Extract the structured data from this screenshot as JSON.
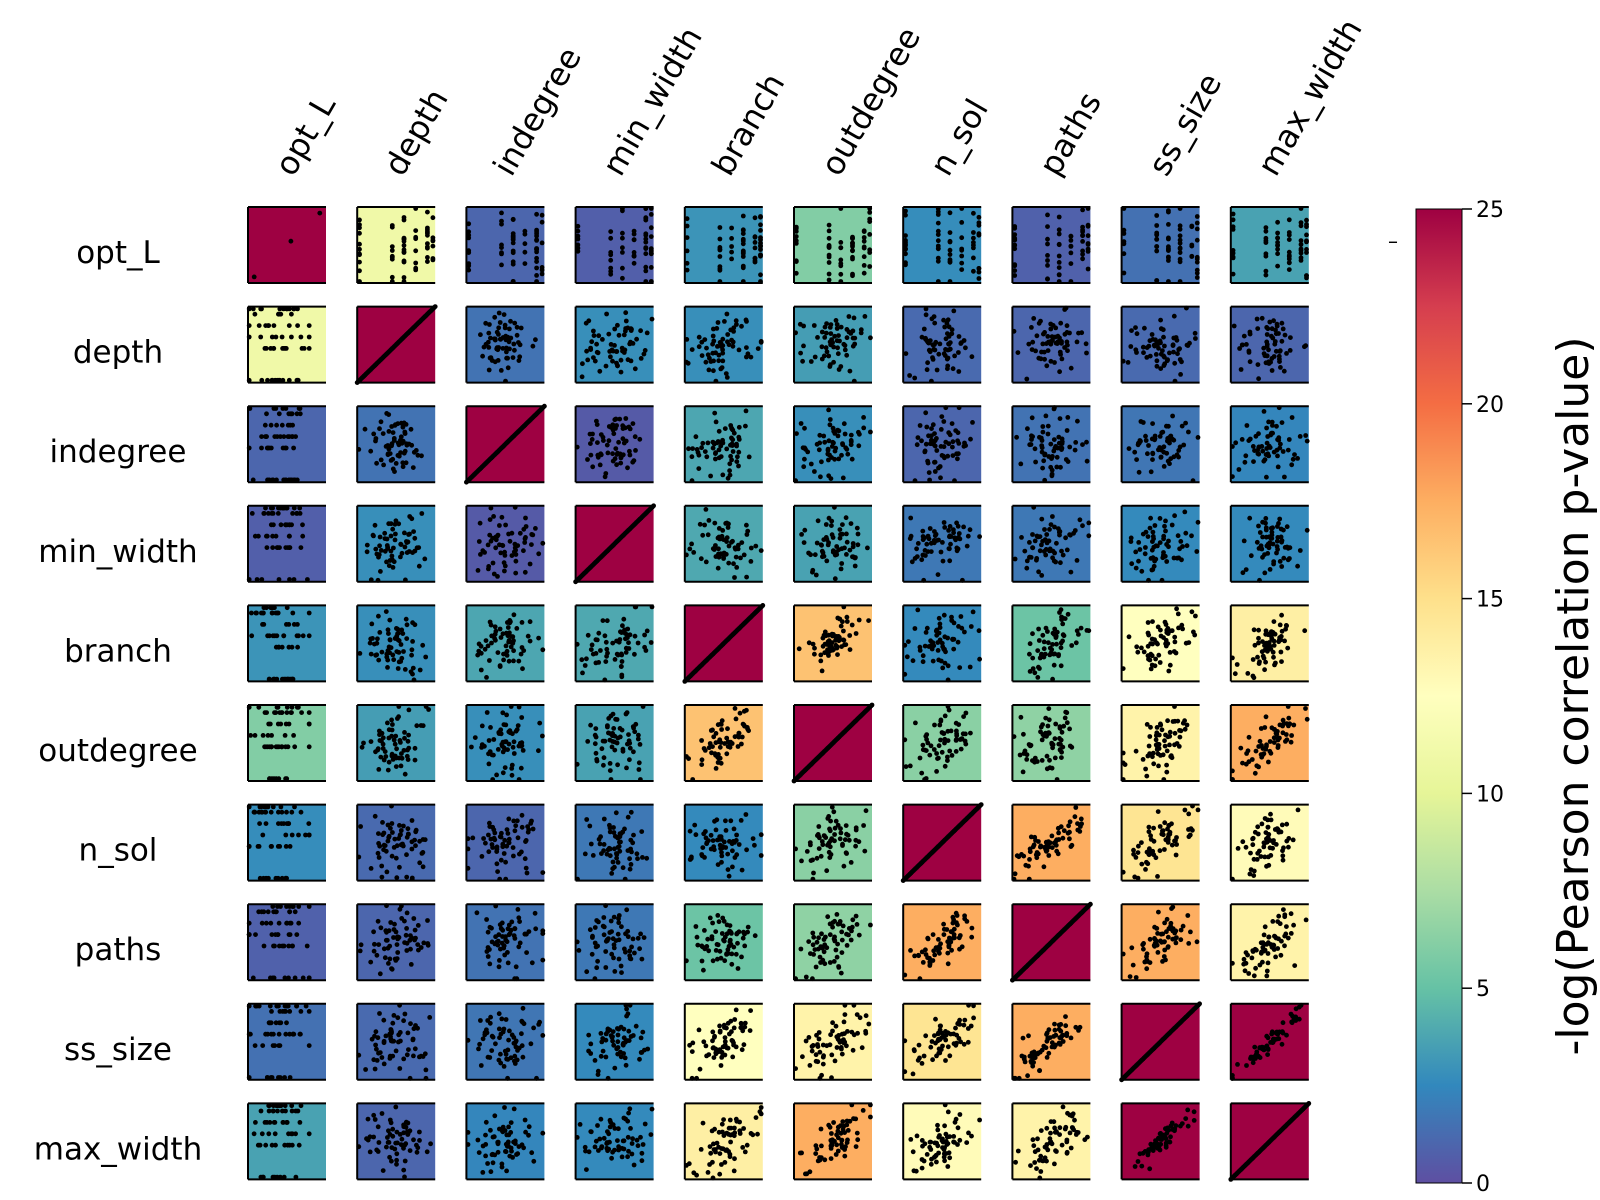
{
  "chart_data": {
    "type": "scatter",
    "variables": [
      "opt_L",
      "depth",
      "indegree",
      "min_width",
      "branch",
      "outdegree",
      "n_sol",
      "paths",
      "ss_size",
      "max_width"
    ],
    "cell_values": [
      [
        25,
        11,
        1,
        0.7,
        3,
        6,
        2.7,
        0.8,
        1.5,
        3.6
      ],
      [
        11,
        25,
        1.6,
        2.8,
        2.8,
        3.4,
        1.2,
        1,
        1.2,
        1
      ],
      [
        1,
        1.6,
        25,
        0.5,
        3.8,
        2.8,
        1,
        1.6,
        1.7,
        2.4
      ],
      [
        0.7,
        2.8,
        0.5,
        25,
        3.9,
        3.6,
        1.8,
        1.8,
        2.6,
        2.6
      ],
      [
        3,
        2.8,
        3.8,
        3.9,
        25,
        16.5,
        2.6,
        5.2,
        12.5,
        13.8
      ],
      [
        6,
        3.4,
        2.8,
        3.6,
        16.5,
        25,
        6.3,
        6.5,
        13.5,
        17.5
      ],
      [
        2.7,
        1.2,
        1,
        1.8,
        2.6,
        6.3,
        25,
        17.5,
        14.6,
        12.8
      ],
      [
        0.8,
        1,
        1.6,
        1.8,
        5.2,
        6.5,
        17.5,
        25,
        17.5,
        13.5
      ],
      [
        1.5,
        1.2,
        1.7,
        2.6,
        12.5,
        13.5,
        14.6,
        17.5,
        25,
        25
      ],
      [
        3.6,
        1,
        2.4,
        2.6,
        13.8,
        17.5,
        12.8,
        13.5,
        25,
        25
      ]
    ],
    "colorbar": {
      "label": "-log(Pearson correlation p-value)",
      "ticks": [
        0,
        5,
        10,
        15,
        20,
        25
      ],
      "range": [
        0,
        25
      ],
      "colormap": "Spectral_r"
    },
    "stray_mark": "–"
  }
}
